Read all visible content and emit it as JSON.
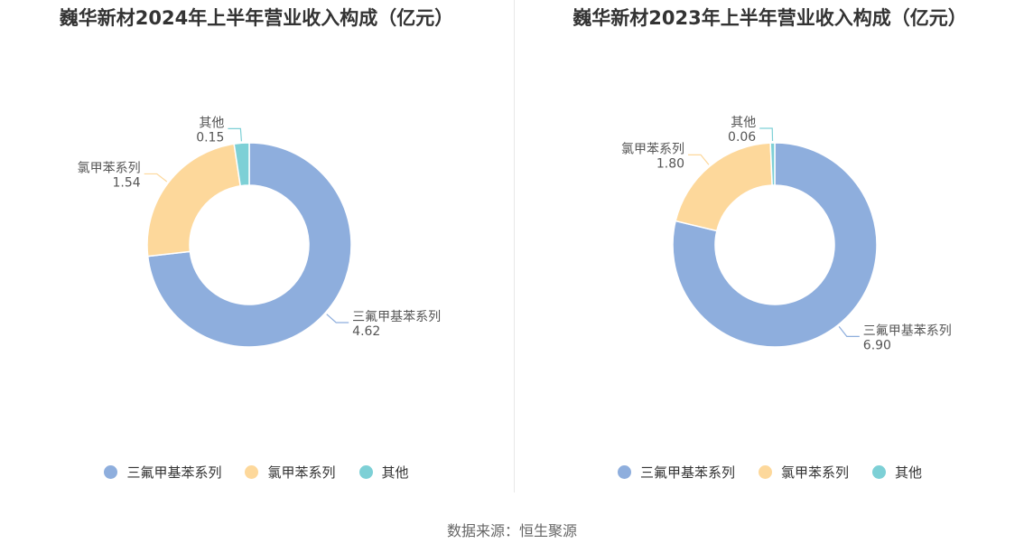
{
  "chart_data": [
    {
      "type": "pie",
      "title": "巍华新材2024年上半年营业收入构成（亿元）",
      "categories": [
        "三氟甲基苯系列",
        "氯甲苯系列",
        "其他"
      ],
      "values": [
        4.62,
        1.54,
        0.15
      ],
      "value_labels": [
        "4.62",
        "1.54",
        "0.15"
      ],
      "colors": [
        "#8eaedd",
        "#fdd89b",
        "#7dd0d6"
      ],
      "legend_position": "bottom",
      "legend": [
        "三氟甲基苯系列",
        "氯甲苯系列",
        "其他"
      ]
    },
    {
      "type": "pie",
      "title": "巍华新材2023年上半年营业收入构成（亿元）",
      "categories": [
        "三氟甲基苯系列",
        "氯甲苯系列",
        "其他"
      ],
      "values": [
        6.9,
        1.8,
        0.06
      ],
      "value_labels": [
        "6.90",
        "1.80",
        "0.06"
      ],
      "colors": [
        "#8eaedd",
        "#fdd89b",
        "#7dd0d6"
      ],
      "legend_position": "bottom",
      "legend": [
        "三氟甲基苯系列",
        "氯甲苯系列",
        "其他"
      ]
    }
  ],
  "source": "数据来源：恒生聚源"
}
